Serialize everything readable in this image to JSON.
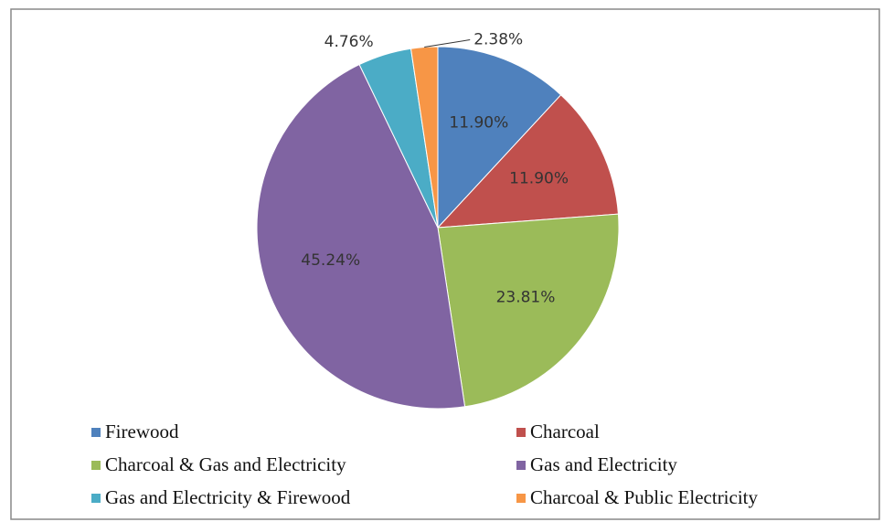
{
  "chart_data": {
    "type": "pie",
    "categories": [
      "Firewood",
      "Charcoal",
      "Charcoal & Gas and Electricity",
      "Gas and Electricity",
      "Gas and Electricity & Firewood",
      "Charcoal & Public Electricity"
    ],
    "values": [
      11.9,
      11.9,
      23.81,
      45.24,
      4.76,
      2.38
    ],
    "value_labels": [
      "11.90%",
      "11.90%",
      "23.81%",
      "45.24%",
      "4.76%",
      "2.38%"
    ],
    "colors": [
      "#4f81bd",
      "#c0504d",
      "#9bbb59",
      "#8064a2",
      "#4bacc6",
      "#f79646"
    ],
    "legend": "bottom"
  }
}
